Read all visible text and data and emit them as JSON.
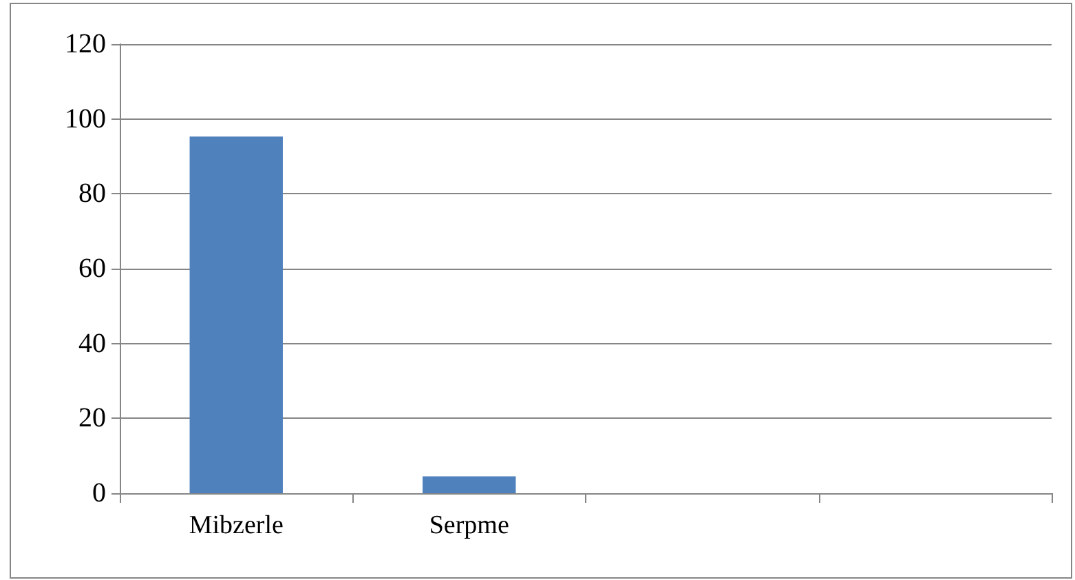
{
  "chart_data": {
    "type": "bar",
    "categories": [
      "Mibzerle",
      "Serpme",
      null,
      null
    ],
    "values": [
      95.3,
      4.5,
      null,
      null
    ],
    "color": "#4f81bd",
    "ylim": [
      0,
      120
    ],
    "yticks": [
      0,
      20,
      40,
      60,
      80,
      100,
      120
    ],
    "grid": "y"
  }
}
